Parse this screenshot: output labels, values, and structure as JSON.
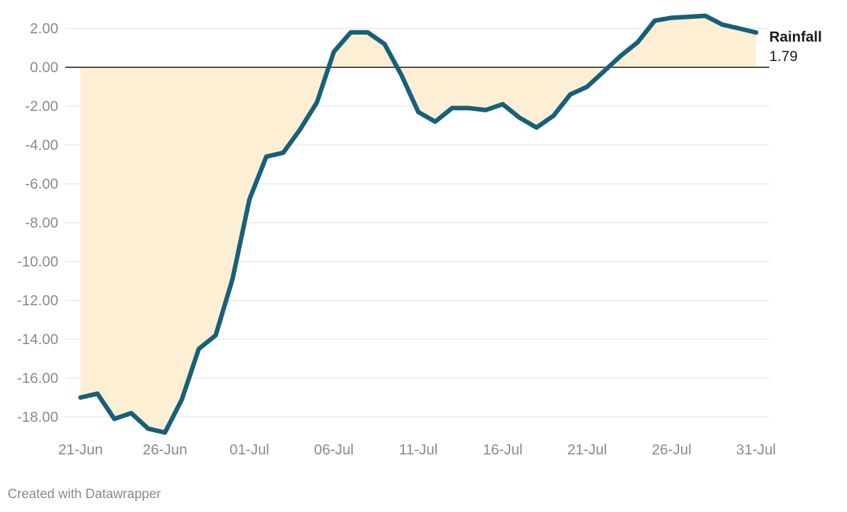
{
  "chart_data": {
    "type": "area",
    "title": "",
    "xlabel": "",
    "ylabel": "",
    "ylim": [
      -19,
      2.6
    ],
    "yticks": [
      "2.00",
      "0.00",
      "-2.00",
      "-4.00",
      "-6.00",
      "-8.00",
      "-10.00",
      "-12.00",
      "-14.00",
      "-16.00",
      "-18.00"
    ],
    "ytick_values": [
      2,
      0,
      -2,
      -4,
      -6,
      -8,
      -10,
      -12,
      -14,
      -16,
      -18
    ],
    "xtick_labels": [
      "21-Jun",
      "26-Jun",
      "01-Jul",
      "06-Jul",
      "11-Jul",
      "16-Jul",
      "21-Jul",
      "26-Jul",
      "31-Jul"
    ],
    "xtick_days": [
      0,
      5,
      10,
      15,
      20,
      25,
      30,
      35,
      40
    ],
    "series": [
      {
        "name": "Rainfall",
        "color": "#17607a",
        "fill_color": "#fdefd3",
        "last_value_label": "1.79",
        "values": [
          -17.0,
          -16.8,
          -18.1,
          -17.8,
          -18.6,
          -18.8,
          -17.1,
          -14.5,
          -13.8,
          -10.9,
          -6.8,
          -4.6,
          -4.4,
          -3.2,
          -1.8,
          0.8,
          1.8,
          1.8,
          1.2,
          -0.4,
          -2.3,
          -2.8,
          -2.1,
          -2.1,
          -2.2,
          -1.9,
          -2.6,
          -3.1,
          -2.5,
          -1.4,
          -1.0,
          -0.2,
          0.6,
          1.3,
          2.4,
          2.55,
          2.6,
          2.65,
          2.2,
          2.0,
          1.79
        ]
      }
    ]
  },
  "credit": "Created with Datawrapper"
}
